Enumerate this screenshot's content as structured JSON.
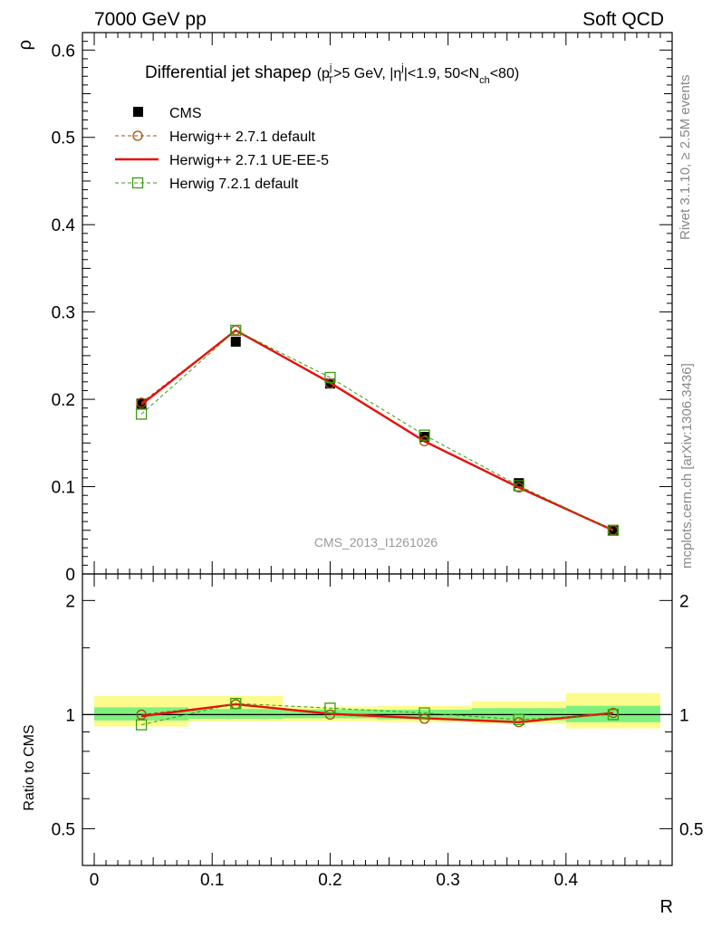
{
  "header": {
    "energy_label": "7000 GeV pp",
    "category_label": "Soft QCD"
  },
  "side_text": {
    "rivet": "Rivet 3.1.10, ≥ 2.5M events",
    "source": "mcplots.cern.ch [arXiv:1306.3436]"
  },
  "chart_data": [
    {
      "type": "line",
      "title": "Differential jet shape ρ (p_T^j > 5 GeV, |η^j| < 1.9, 50 < N_ch < 80)",
      "title_parts": {
        "main": "Differential jet shape",
        "rho": "ρ",
        "open": "(p",
        "sup_j": "j",
        "sub_T": "T",
        "mid1": ">5 GeV, |η",
        "sup_j2": "j",
        "mid2": "|<1.9, 50<N",
        "sub_ch": "ch",
        "close": "<80)"
      },
      "ylabel": "ρ",
      "ylim": [
        0,
        0.62
      ],
      "yticks": [
        {
          "v": 0,
          "label": "0"
        },
        {
          "v": 0.1,
          "label": "0.1"
        },
        {
          "v": 0.2,
          "label": "0.2"
        },
        {
          "v": 0.3,
          "label": "0.3"
        },
        {
          "v": 0.4,
          "label": "0.4"
        },
        {
          "v": 0.5,
          "label": "0.5"
        },
        {
          "v": 0.6,
          "label": "0.6"
        }
      ],
      "analysis_label": "CMS_2013_I1261026",
      "x": [
        0.04,
        0.12,
        0.2,
        0.28,
        0.36,
        0.44
      ],
      "series": [
        {
          "name": "CMS",
          "values": [
            0.195,
            0.266,
            0.218,
            0.157,
            0.104,
            0.05
          ],
          "color": "#000000",
          "marker": "filled-square"
        },
        {
          "name": "Herwig++ 2.7.1 default",
          "values": [
            0.196,
            0.279,
            0.218,
            0.152,
            0.099,
            0.05
          ],
          "color": "#a05000",
          "marker": "open-circle",
          "dash": "dashed"
        },
        {
          "name": "Herwig++ 2.7.1 UE-EE-5",
          "values": [
            0.194,
            0.279,
            0.219,
            0.152,
            0.099,
            0.05
          ],
          "color": "#e8100c",
          "marker": "none",
          "dash": "solid"
        },
        {
          "name": "Herwig 7.2.1 default",
          "values": [
            0.183,
            0.279,
            0.225,
            0.159,
            0.101,
            0.05
          ],
          "color": "#3a9a10",
          "marker": "open-square",
          "dash": "dashed"
        }
      ],
      "legend_position": "top-left"
    },
    {
      "type": "line",
      "ylabel": "Ratio to CMS",
      "xlabel": "R",
      "scale": "log",
      "ylim": [
        0.4,
        2.35
      ],
      "yticks": [
        {
          "v": 0.5,
          "label": "0.5"
        },
        {
          "v": 1,
          "label": "1"
        },
        {
          "v": 2,
          "label": "2"
        }
      ],
      "xlim": [
        -0.01,
        0.49
      ],
      "xticks": [
        {
          "v": 0,
          "label": "0"
        },
        {
          "v": 0.1,
          "label": "0.1"
        },
        {
          "v": 0.2,
          "label": "0.2"
        },
        {
          "v": 0.3,
          "label": "0.3"
        },
        {
          "v": 0.4,
          "label": "0.4"
        }
      ],
      "bins": [
        [
          0,
          0.08
        ],
        [
          0.08,
          0.16
        ],
        [
          0.16,
          0.24
        ],
        [
          0.24,
          0.32
        ],
        [
          0.32,
          0.4
        ],
        [
          0.4,
          0.48
        ]
      ],
      "band_inner": [
        [
          0.965,
          1.045
        ],
        [
          0.975,
          1.035
        ],
        [
          0.978,
          1.032
        ],
        [
          0.972,
          1.03
        ],
        [
          0.965,
          1.04
        ],
        [
          0.955,
          1.055
        ]
      ],
      "band_outer": [
        [
          0.93,
          1.12
        ],
        [
          0.96,
          1.12
        ],
        [
          0.96,
          1.05
        ],
        [
          0.955,
          1.055
        ],
        [
          0.945,
          1.085
        ],
        [
          0.92,
          1.14
        ]
      ],
      "band_colors": {
        "inner": "#7ef07e",
        "outer": "#fcfc8c"
      },
      "x": [
        0.04,
        0.12,
        0.2,
        0.28,
        0.36,
        0.44
      ],
      "series": [
        {
          "name": "Herwig++ 2.7.1 default",
          "values": [
            1.0,
            1.065,
            1.0,
            0.975,
            0.955,
            1.01
          ],
          "color": "#a05000",
          "marker": "open-circle",
          "dash": "dashed"
        },
        {
          "name": "Herwig++ 2.7.1 UE-EE-5",
          "values": [
            0.99,
            1.065,
            1.005,
            0.978,
            0.955,
            1.01
          ],
          "color": "#e8100c",
          "marker": "none",
          "dash": "solid"
        },
        {
          "name": "Herwig 7.2.1 default",
          "values": [
            0.94,
            1.07,
            1.04,
            1.01,
            0.97,
            1.0
          ],
          "color": "#3a9a10",
          "marker": "open-square",
          "dash": "dashed"
        }
      ]
    }
  ]
}
